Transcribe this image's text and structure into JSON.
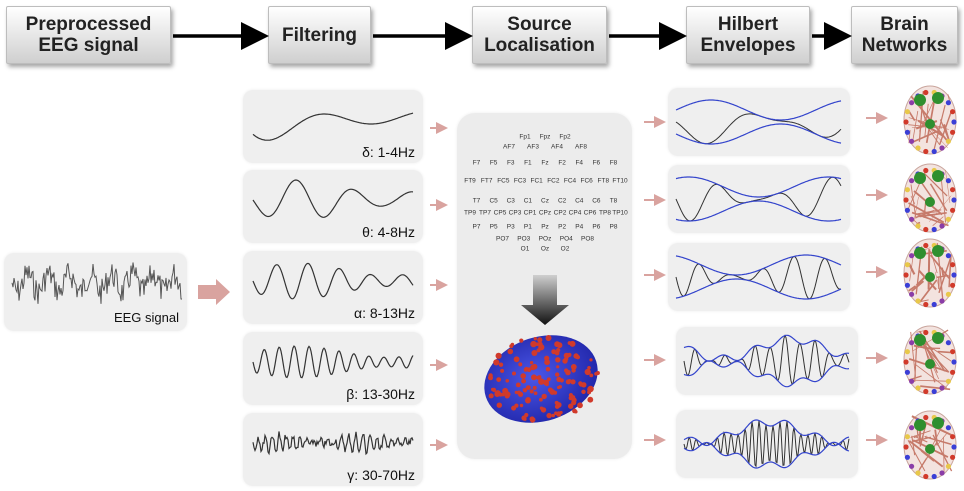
{
  "stages": [
    {
      "line1": "Preprocessed",
      "line2": "EEG signal"
    },
    {
      "line1": "Filtering",
      "line2": ""
    },
    {
      "line1": "Source",
      "line2": "Localisation"
    },
    {
      "line1": "Hilbert",
      "line2": "Envelopes"
    },
    {
      "line1": "Brain",
      "line2": "Networks"
    }
  ],
  "eeg_label": "EEG signal",
  "bands": [
    {
      "label": "δ: 1-4Hz"
    },
    {
      "label": "θ: 4-8Hz"
    },
    {
      "label": "α: 8-13Hz"
    },
    {
      "label": "β: 13-30Hz"
    },
    {
      "label": "γ: 30-70Hz"
    }
  ],
  "electrodes": [
    "Fp1",
    "Fpz",
    "Fp2",
    "AF7",
    "AF3",
    "AF4",
    "AF8",
    "F7",
    "F5",
    "F3",
    "F1",
    "Fz",
    "F2",
    "F4",
    "F6",
    "F8",
    "FT9",
    "FT7",
    "FC5",
    "FC3",
    "FC1",
    "FC2",
    "FC4",
    "FC6",
    "FT8",
    "FT10",
    "T7",
    "C5",
    "C3",
    "C1",
    "Cz",
    "C2",
    "C4",
    "C6",
    "T8",
    "TP9",
    "TP7",
    "CP5",
    "CP3",
    "CP1",
    "CPz",
    "CP2",
    "CP4",
    "CP6",
    "TP8",
    "TP10",
    "P7",
    "P5",
    "P3",
    "P1",
    "Pz",
    "P2",
    "P4",
    "P6",
    "P8",
    "PO7",
    "PO3",
    "POz",
    "PO4",
    "PO8",
    "O1",
    "Oz",
    "O2"
  ],
  "colors": {
    "envelope": "#3344cc",
    "signal": "#333333",
    "connector_arrow": "#d9a39f",
    "brain_blue": "#3b3fd6",
    "brain_red": "#d13a2b",
    "node_green": "#2f8f2f"
  },
  "icons": [
    "arrow-right-icon",
    "arrow-down-icon",
    "brain-network-icon"
  ]
}
